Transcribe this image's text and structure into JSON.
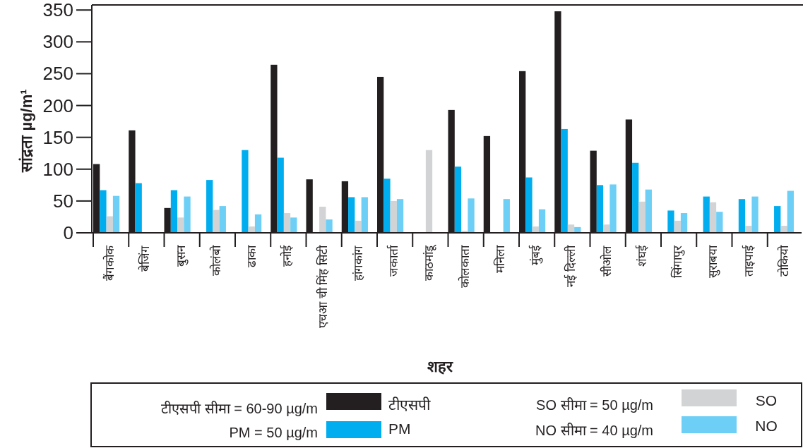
{
  "chart_data": {
    "type": "bar",
    "ylabel": "सांद्रता µg/m¹",
    "xlabel": "शहर",
    "categories": [
      "बैंगकोक",
      "बेजिंग",
      "बुसन",
      "कोलंबो",
      "ढाका",
      "हनोई",
      "एचआ ची मिंह सिटी",
      "हांगकांग",
      "जकार्ता",
      "काठमांडू",
      "कोलकाता",
      "मनिला",
      "मुंबई",
      "नई दिल्ली",
      "सीओल",
      "शंघई",
      "सिंगापुर",
      "सुराबया",
      "ताइपाई",
      "टोकियो"
    ],
    "series": [
      {
        "name": "टीएसपी",
        "color": "#231f20",
        "values": [
          108,
          161,
          39,
          null,
          null,
          264,
          84,
          81,
          245,
          null,
          193,
          152,
          254,
          348,
          129,
          178,
          null,
          null,
          null,
          null
        ]
      },
      {
        "name": "PM",
        "color": "#00aeef",
        "values": [
          67,
          78,
          67,
          83,
          130,
          118,
          null,
          56,
          85,
          null,
          104,
          null,
          87,
          163,
          75,
          110,
          35,
          57,
          53,
          42
        ]
      },
      {
        "name": "SO",
        "color": "#d1d3d4",
        "values": [
          26,
          null,
          24,
          36,
          10,
          31,
          41,
          19,
          50,
          130,
          3,
          null,
          10,
          13,
          13,
          49,
          19,
          48,
          11,
          11
        ]
      },
      {
        "name": "NO",
        "color": "#6dcff6",
        "values": [
          58,
          null,
          57,
          42,
          29,
          24,
          21,
          56,
          53,
          null,
          54,
          53,
          37,
          9,
          76,
          68,
          31,
          33,
          57,
          66
        ]
      }
    ],
    "ylim": [
      0,
      358
    ],
    "yticks": [
      0,
      50,
      100,
      150,
      200,
      250,
      300,
      350
    ],
    "grid": false,
    "legend": "bottom",
    "annotations": [
      "टीएसपी सीमा  = 60-90 µg/m",
      "PM  = 50 µg/m",
      "SO सीमा  = 50 µg/m",
      "NO सीमा  = 40 µg/m"
    ]
  }
}
